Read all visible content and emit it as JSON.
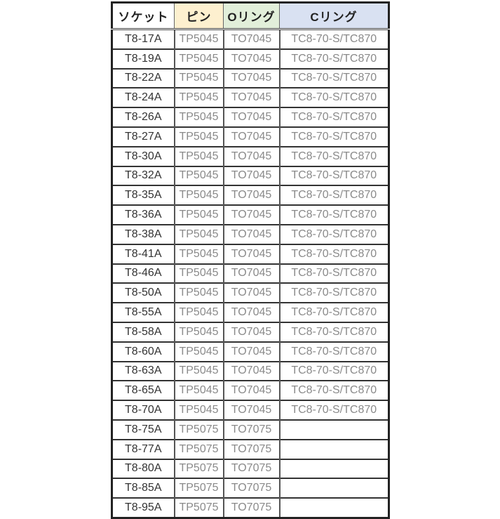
{
  "colors": {
    "pin_header": "#fdf0cf",
    "oring_header": "#e2efda",
    "cring_header": "#d9e1f2"
  },
  "headers": {
    "socket": "ソケット",
    "pin": "ピン",
    "oring": "Oリング",
    "cring": "Cリング"
  },
  "rows": [
    [
      "T8-17A",
      "TP5045",
      "TO7045",
      "TC8-70-S/TC870"
    ],
    [
      "T8-19A",
      "TP5045",
      "TO7045",
      "TC8-70-S/TC870"
    ],
    [
      "T8-22A",
      "TP5045",
      "TO7045",
      "TC8-70-S/TC870"
    ],
    [
      "T8-24A",
      "TP5045",
      "TO7045",
      "TC8-70-S/TC870"
    ],
    [
      "T8-26A",
      "TP5045",
      "TO7045",
      "TC8-70-S/TC870"
    ],
    [
      "T8-27A",
      "TP5045",
      "TO7045",
      "TC8-70-S/TC870"
    ],
    [
      "T8-30A",
      "TP5045",
      "TO7045",
      "TC8-70-S/TC870"
    ],
    [
      "T8-32A",
      "TP5045",
      "TO7045",
      "TC8-70-S/TC870"
    ],
    [
      "T8-35A",
      "TP5045",
      "TO7045",
      "TC8-70-S/TC870"
    ],
    [
      "T8-36A",
      "TP5045",
      "TO7045",
      "TC8-70-S/TC870"
    ],
    [
      "T8-38A",
      "TP5045",
      "TO7045",
      "TC8-70-S/TC870"
    ],
    [
      "T8-41A",
      "TP5045",
      "TO7045",
      "TC8-70-S/TC870"
    ],
    [
      "T8-46A",
      "TP5045",
      "TO7045",
      "TC8-70-S/TC870"
    ],
    [
      "T8-50A",
      "TP5045",
      "TO7045",
      "TC8-70-S/TC870"
    ],
    [
      "T8-55A",
      "TP5045",
      "TO7045",
      "TC8-70-S/TC870"
    ],
    [
      "T8-58A",
      "TP5045",
      "TO7045",
      "TC8-70-S/TC870"
    ],
    [
      "T8-60A",
      "TP5045",
      "TO7045",
      "TC8-70-S/TC870"
    ],
    [
      "T8-63A",
      "TP5045",
      "TO7045",
      "TC8-70-S/TC870"
    ],
    [
      "T8-65A",
      "TP5045",
      "TO7045",
      "TC8-70-S/TC870"
    ],
    [
      "T8-70A",
      "TP5045",
      "TO7045",
      "TC8-70-S/TC870"
    ],
    [
      "T8-75A",
      "TP5075",
      "TO7075",
      ""
    ],
    [
      "T8-77A",
      "TP5075",
      "TO7075",
      ""
    ],
    [
      "T8-80A",
      "TP5075",
      "TO7075",
      ""
    ],
    [
      "T8-85A",
      "TP5075",
      "TO7075",
      ""
    ],
    [
      "T8-95A",
      "TP5075",
      "TO7075",
      ""
    ]
  ]
}
